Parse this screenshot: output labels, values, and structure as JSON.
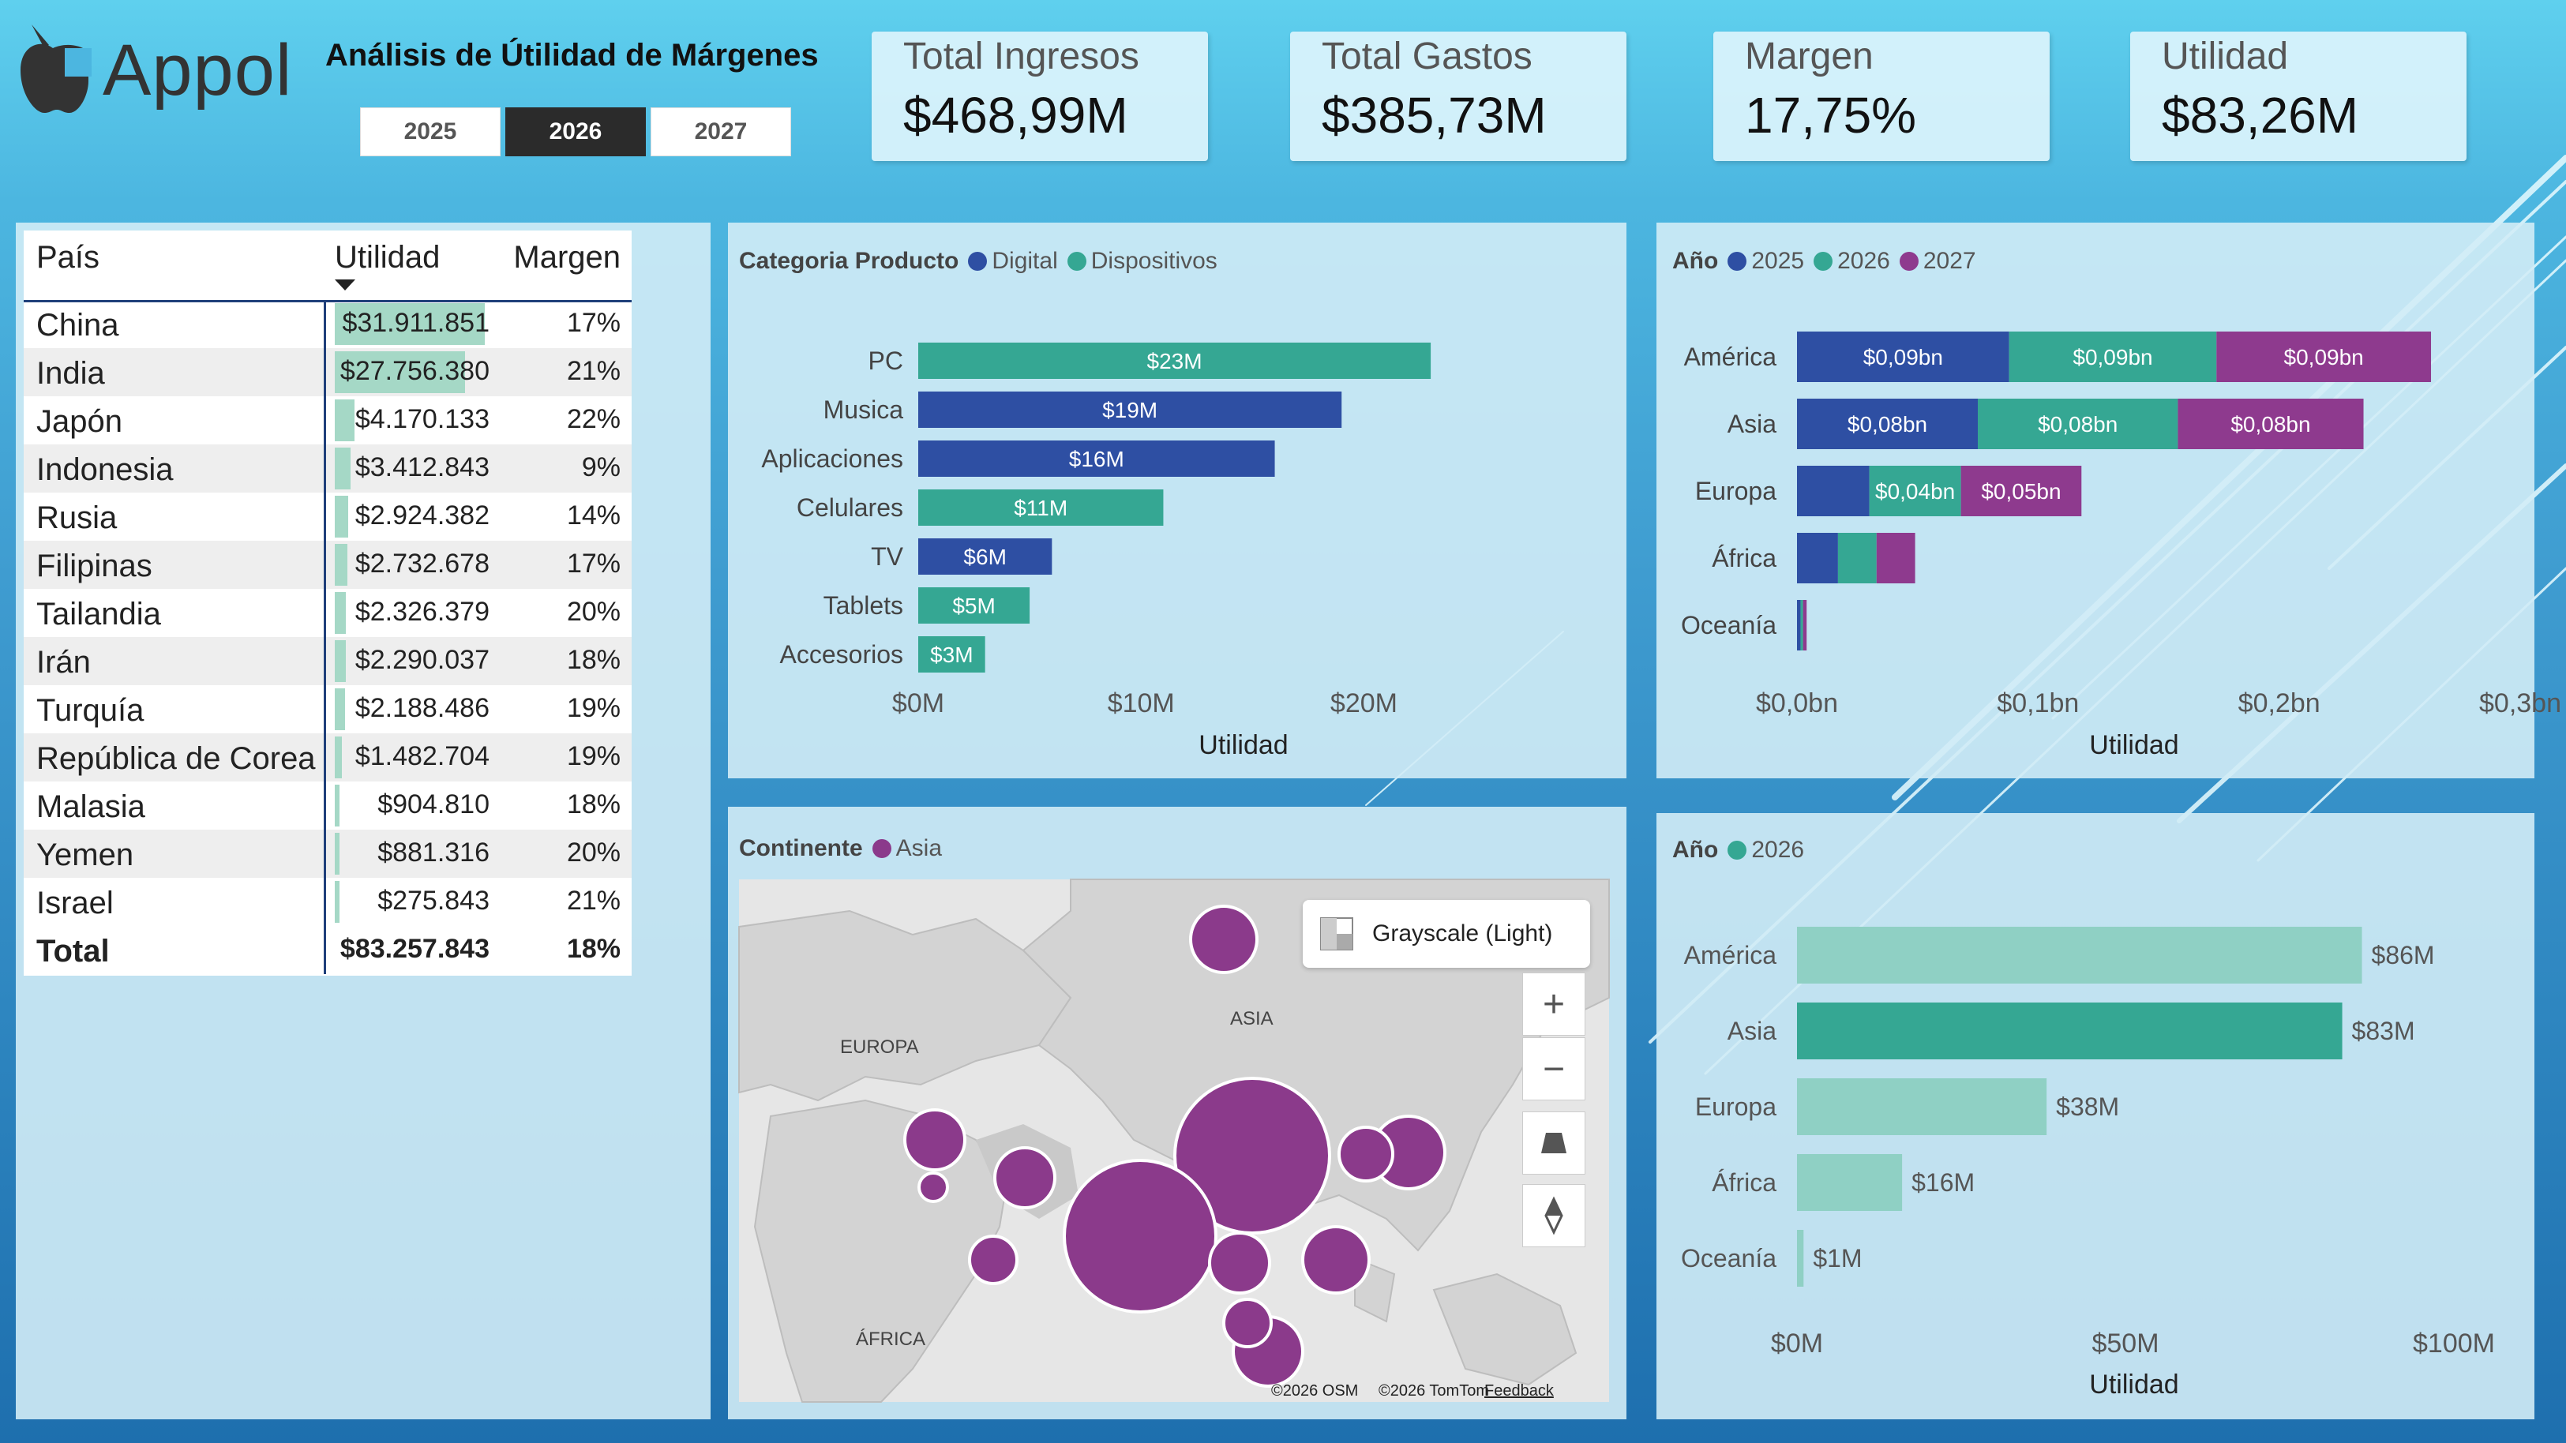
{
  "header": {
    "logo_text": "Appol",
    "title": "Análisis de Útilidad de Márgenes",
    "years": [
      "2025",
      "2026",
      "2027"
    ],
    "selected_year": "2026"
  },
  "kpis": [
    {
      "label": "Total Ingresos",
      "value": "$468,99M"
    },
    {
      "label": "Total Gastos",
      "value": "$385,73M"
    },
    {
      "label": "Margen",
      "value": "17,75%"
    },
    {
      "label": "Utilidad",
      "value": "$83,26M"
    }
  ],
  "table": {
    "columns": [
      "País",
      "Utilidad",
      "Margen"
    ],
    "rows": [
      {
        "country": "China",
        "utilidad": "$31.911.851",
        "margen": "17%",
        "value": 31911851
      },
      {
        "country": "India",
        "utilidad": "$27.756.380",
        "margen": "21%",
        "value": 27756380
      },
      {
        "country": "Japón",
        "utilidad": "$4.170.133",
        "margen": "22%",
        "value": 4170133
      },
      {
        "country": "Indonesia",
        "utilidad": "$3.412.843",
        "margen": "9%",
        "value": 3412843
      },
      {
        "country": "Rusia",
        "utilidad": "$2.924.382",
        "margen": "14%",
        "value": 2924382
      },
      {
        "country": "Filipinas",
        "utilidad": "$2.732.678",
        "margen": "17%",
        "value": 2732678
      },
      {
        "country": "Tailandia",
        "utilidad": "$2.326.379",
        "margen": "20%",
        "value": 2326379
      },
      {
        "country": "Irán",
        "utilidad": "$2.290.037",
        "margen": "18%",
        "value": 2290037
      },
      {
        "country": "Turquía",
        "utilidad": "$2.188.486",
        "margen": "19%",
        "value": 2188486
      },
      {
        "country": "República de Corea",
        "utilidad": "$1.482.704",
        "margen": "19%",
        "value": 1482704
      },
      {
        "country": "Malasia",
        "utilidad": "$904.810",
        "margen": "18%",
        "value": 904810
      },
      {
        "country": "Yemen",
        "utilidad": "$881.316",
        "margen": "20%",
        "value": 881316
      },
      {
        "country": "Israel",
        "utilidad": "$275.843",
        "margen": "21%",
        "value": 275843
      }
    ],
    "total": {
      "label": "Total",
      "utilidad": "$83.257.843",
      "margen": "18%"
    }
  },
  "colors": {
    "digital": "#2e4fa3",
    "dispositivos": "#35a793",
    "y2025": "#2e4fa3",
    "y2026": "#35a793",
    "y2027": "#8e3a8e",
    "bubble": "#8b3a8b",
    "bar_light": "#8fd0c4"
  },
  "chart_data": [
    {
      "type": "bar",
      "orientation": "horizontal",
      "legend_title": "Categoria Producto",
      "legend": [
        "Digital",
        "Dispositivos"
      ],
      "categories": [
        "PC",
        "Musica",
        "Aplicaciones",
        "Celulares",
        "TV",
        "Tablets",
        "Accesorios"
      ],
      "values": [
        23,
        19,
        16,
        11,
        6,
        5,
        3
      ],
      "groups": [
        "Dispositivos",
        "Digital",
        "Digital",
        "Dispositivos",
        "Digital",
        "Dispositivos",
        "Dispositivos"
      ],
      "data_labels": [
        "$23M",
        "$19M",
        "$16M",
        "$11M",
        "$6M",
        "$5M",
        "$3M"
      ],
      "xticks": [
        "$0M",
        "$10M",
        "$20M"
      ],
      "xtick_values": [
        0,
        10,
        20
      ],
      "xlim": [
        0,
        27
      ],
      "xlabel": "Utilidad"
    },
    {
      "type": "bar",
      "orientation": "horizontal",
      "stacked": true,
      "legend_title": "Año",
      "categories": [
        "América",
        "Asia",
        "Europa",
        "África",
        "Oceanía"
      ],
      "series": [
        {
          "name": "2025",
          "values": [
            0.088,
            0.075,
            0.03,
            0.017,
            0.0015
          ],
          "labels": [
            "$0,09bn",
            "$0,08bn",
            "",
            "",
            ""
          ]
        },
        {
          "name": "2026",
          "values": [
            0.086,
            0.083,
            0.038,
            0.016,
            0.001
          ],
          "labels": [
            "$0,09bn",
            "$0,08bn",
            "$0,04bn",
            "",
            ""
          ]
        },
        {
          "name": "2027",
          "values": [
            0.089,
            0.077,
            0.05,
            0.016,
            0.0015
          ],
          "labels": [
            "$0,09bn",
            "$0,08bn",
            "$0,05bn",
            "",
            ""
          ]
        }
      ],
      "xticks": [
        "$0,0bn",
        "$0,1bn",
        "$0,2bn",
        "$0,3bn"
      ],
      "xtick_values": [
        0,
        0.1,
        0.2,
        0.3
      ],
      "xlim": [
        0,
        0.3
      ],
      "xlabel": "Utilidad"
    },
    {
      "type": "bar",
      "orientation": "horizontal",
      "legend_title": "Año",
      "legend": [
        "2026"
      ],
      "categories": [
        "América",
        "Asia",
        "Europa",
        "África",
        "Oceanía"
      ],
      "values": [
        86,
        83,
        38,
        16,
        1
      ],
      "highlight_index": 1,
      "data_labels": [
        "$86M",
        "$83M",
        "$38M",
        "$16M",
        "$1M"
      ],
      "xticks": [
        "$0M",
        "$50M",
        "$100M"
      ],
      "xtick_values": [
        0,
        50,
        100
      ],
      "xlim": [
        0,
        100
      ],
      "xlabel": "Utilidad"
    }
  ],
  "map": {
    "legend_title": "Continente",
    "legend": [
      "Asia"
    ],
    "style_label": "Grayscale (Light)",
    "region_labels": [
      "EUROPA",
      "ASIA",
      "ÁFRICA"
    ],
    "attribution": [
      "©2026 OSM",
      "©2026 TomTom",
      "Feedback"
    ],
    "tools": [
      "zoom-in",
      "zoom-out",
      "tilt",
      "compass"
    ]
  }
}
